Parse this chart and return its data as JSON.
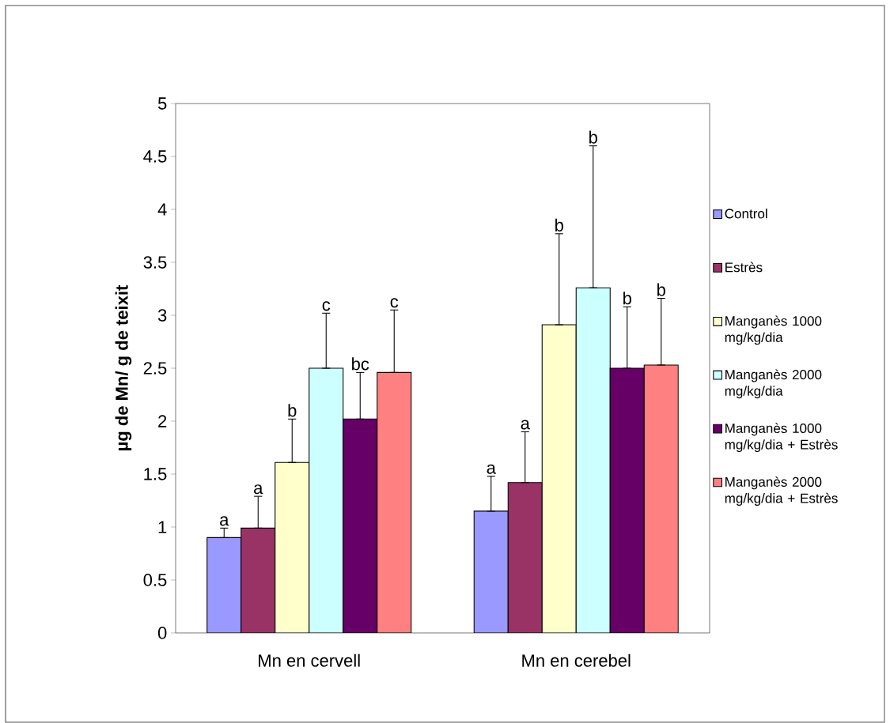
{
  "chart_data": {
    "type": "bar",
    "ylabel": "**µg de Mn/ g de teixit**",
    "categories": [
      "Mn en cervell",
      "Mn en cerebel"
    ],
    "ylim": [
      0,
      5
    ],
    "yticks": [
      0,
      0.5,
      1,
      1.5,
      2,
      2.5,
      3,
      3.5,
      4,
      4.5,
      5
    ],
    "grid": false,
    "legend": "right",
    "series": [
      {
        "name": "Control",
        "color": "#9999ff",
        "values": [
          0.9,
          1.15
        ],
        "errors": [
          [
            0.9,
            0.99
          ],
          [
            1.15,
            1.48
          ]
        ]
      },
      {
        "name": "Estrès",
        "color": "#993366",
        "values": [
          0.99,
          1.42
        ],
        "errors": [
          [
            0.99,
            1.29
          ],
          [
            1.42,
            1.9
          ]
        ]
      },
      {
        "name": "Manganès 1000 mg/kg/dia",
        "color": "#ffffcc",
        "values": [
          1.61,
          2.91
        ],
        "errors": [
          [
            1.61,
            2.02
          ],
          [
            2.91,
            3.77
          ]
        ]
      },
      {
        "name": "Manganès 2000 mg/kg/dia",
        "color": "#ccffff",
        "values": [
          2.5,
          3.26
        ],
        "errors": [
          [
            2.5,
            3.02
          ],
          [
            3.26,
            4.6
          ]
        ]
      },
      {
        "name": "Manganès 1000 mg/kg/dia + Estrès",
        "color": "#660066",
        "values": [
          2.02,
          2.5
        ],
        "errors": [
          [
            2.02,
            2.46
          ],
          [
            2.5,
            3.08
          ]
        ]
      },
      {
        "name": "Manganès 2000 mg/kg/dia + Estrès",
        "color": "#ff8080",
        "values": [
          2.46,
          2.53
        ],
        "errors": [
          [
            2.46,
            3.05
          ],
          [
            2.53,
            3.16
          ]
        ]
      }
    ],
    "annotations": [
      "a",
      "a",
      "a",
      "a",
      "b",
      "b",
      "c",
      "b",
      "bc",
      "b",
      "c",
      "b"
    ]
  }
}
